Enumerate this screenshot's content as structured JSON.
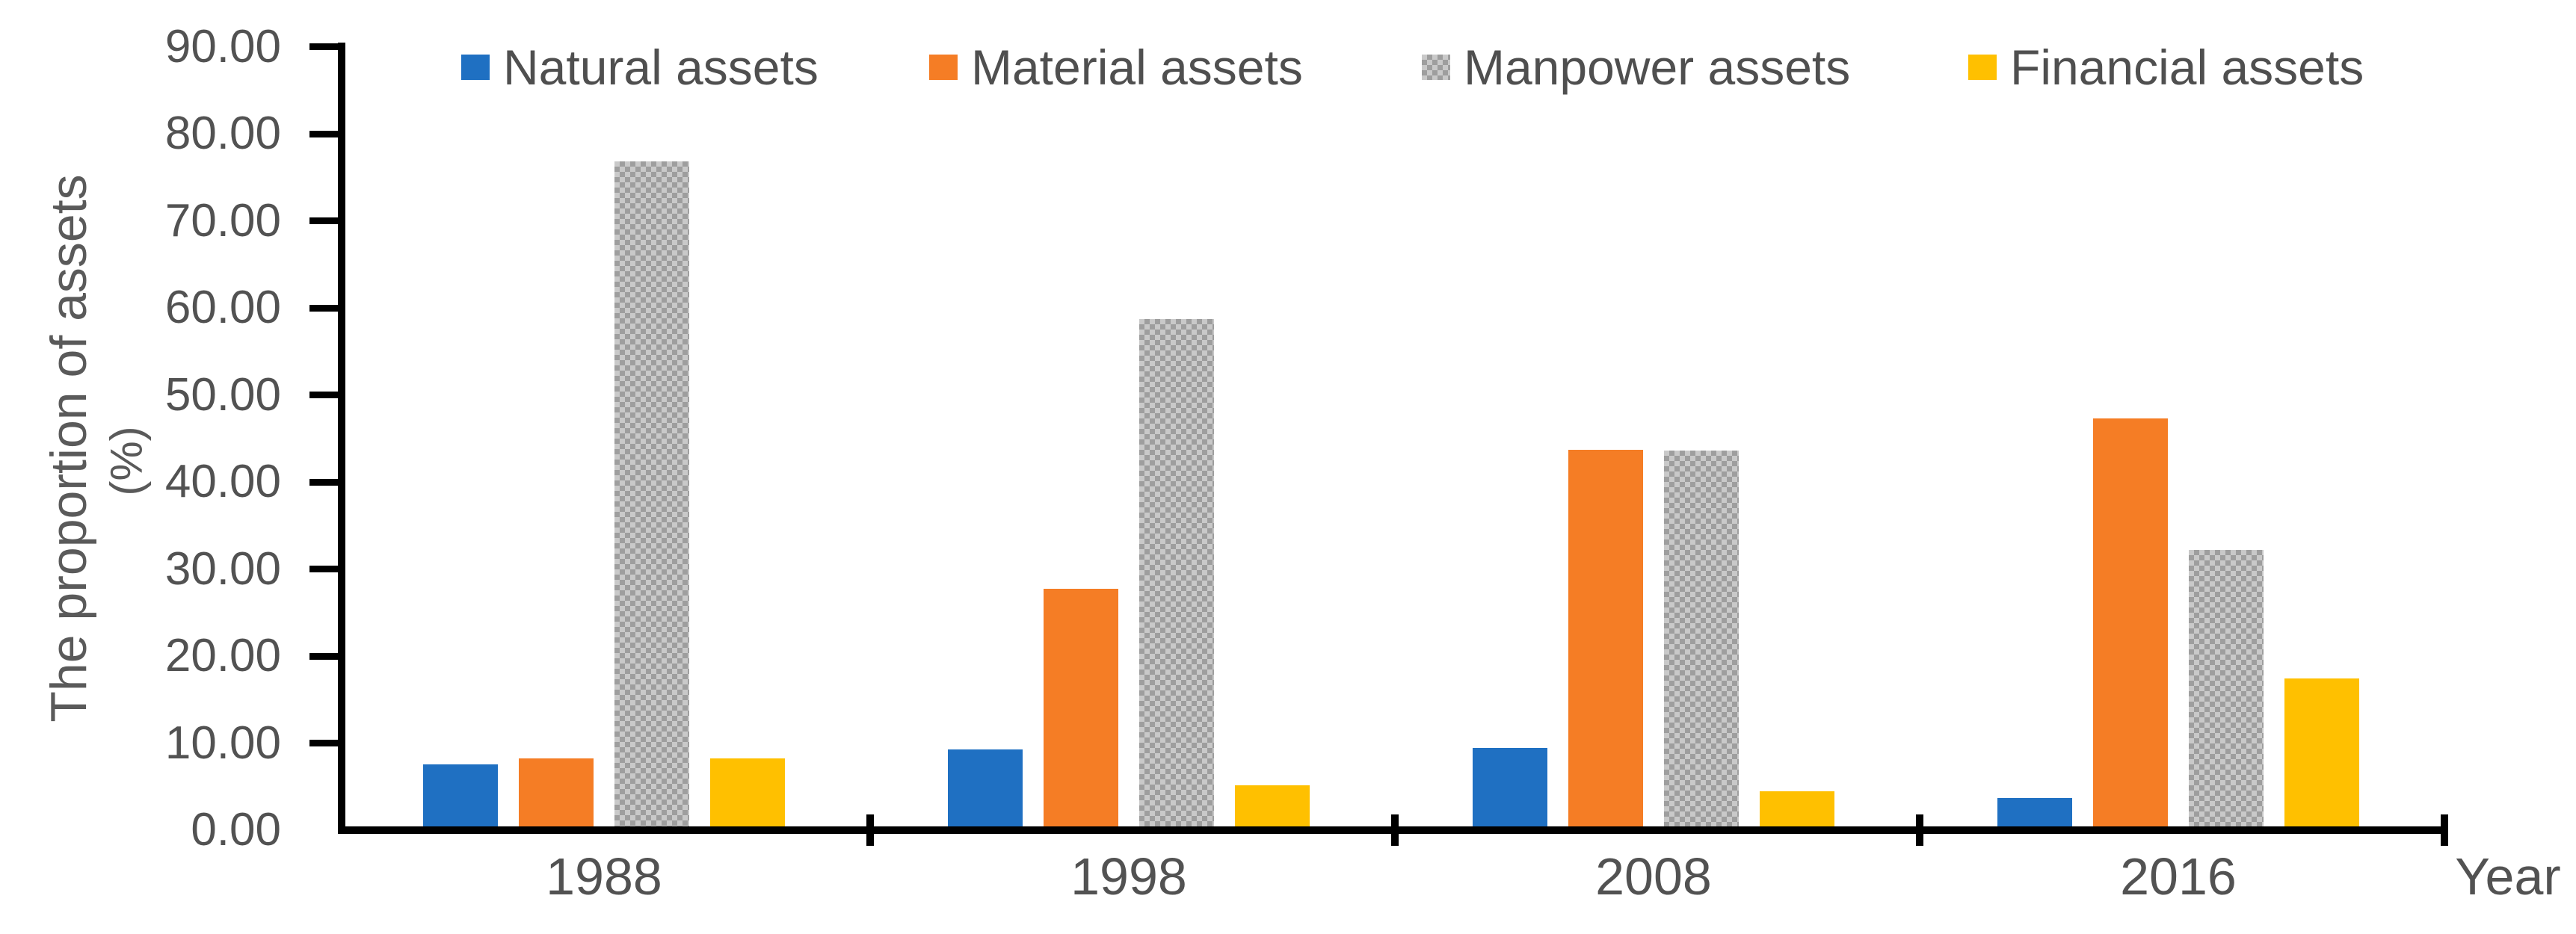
{
  "chart_data": {
    "type": "bar",
    "title": "",
    "categories": [
      "1988",
      "1998",
      "2008",
      "2016"
    ],
    "series": [
      {
        "name": "Natural assets",
        "color": "#1f70c2",
        "pattern": false,
        "values": [
          7.1,
          8.8,
          9.0,
          3.3
        ]
      },
      {
        "name": "Material assets",
        "color": "#f57d25",
        "pattern": false,
        "values": [
          7.8,
          27.3,
          43.3,
          46.9
        ]
      },
      {
        "name": "Manpower assets",
        "color": "#c9c9c9",
        "pattern": true,
        "pattern_dot_color": "#9e9e9e",
        "values": [
          76.4,
          58.3,
          43.2,
          31.8
        ]
      },
      {
        "name": "Financial assets",
        "color": "#ffc000",
        "pattern": false,
        "values": [
          7.8,
          4.7,
          4.0,
          17.0
        ]
      }
    ],
    "xlabel": "Year",
    "ylabel_line1": "The proportion of assets",
    "ylabel_line2": "(%)",
    "ylabel": "The proportion of assets (%)",
    "ylim": [
      0,
      90
    ],
    "ytick_step": 10,
    "ytick_labels": [
      "90.00",
      "80.00",
      "70.00",
      "60.00",
      "50.00",
      "40.00",
      "30.00",
      "20.00",
      "10.00",
      "0.00"
    ],
    "legend_position": "top",
    "grid": false,
    "axis_color": "#000000",
    "text_color": "#525252"
  }
}
